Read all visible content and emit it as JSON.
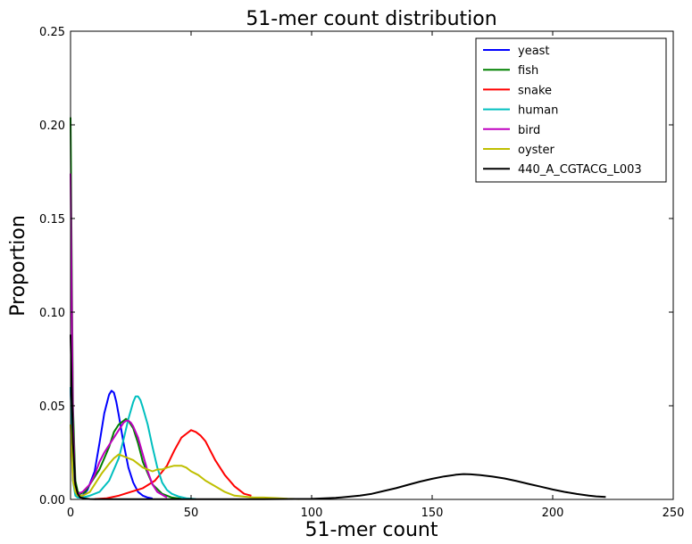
{
  "chart_data": {
    "type": "line",
    "title": "51-mer count distribution",
    "xlabel": "51-mer count",
    "ylabel": "Proportion",
    "xlim": [
      0,
      250
    ],
    "ylim": [
      0,
      0.25
    ],
    "xticks": [
      "0",
      "50",
      "100",
      "150",
      "200",
      "250"
    ],
    "yticks": [
      "0.00",
      "0.05",
      "0.10",
      "0.15",
      "0.20",
      "0.25"
    ],
    "grid": false,
    "legend_position": "top-right",
    "series": [
      {
        "name": "yeast",
        "color": "#0000ff",
        "x": [
          0,
          1,
          2,
          3,
          5,
          7,
          10,
          12,
          14,
          16,
          17,
          18,
          19,
          20,
          22,
          24,
          26,
          28,
          30,
          32,
          34
        ],
        "y": [
          0.06,
          0.02,
          0.004,
          0.002,
          0.002,
          0.005,
          0.015,
          0.03,
          0.046,
          0.056,
          0.058,
          0.057,
          0.052,
          0.045,
          0.03,
          0.017,
          0.009,
          0.004,
          0.002,
          0.001,
          0.0005
        ]
      },
      {
        "name": "fish",
        "color": "#008000",
        "x": [
          0,
          1,
          2,
          3,
          4,
          6,
          8,
          10,
          12,
          14,
          16,
          18,
          20,
          22,
          23,
          24,
          26,
          28,
          30,
          34,
          38,
          42,
          46
        ],
        "y": [
          0.204,
          0.05,
          0.01,
          0.004,
          0.003,
          0.004,
          0.008,
          0.012,
          0.016,
          0.022,
          0.028,
          0.036,
          0.04,
          0.042,
          0.043,
          0.042,
          0.038,
          0.03,
          0.02,
          0.008,
          0.003,
          0.001,
          0.0003
        ]
      },
      {
        "name": "snake",
        "color": "#ff0000",
        "x": [
          10,
          15,
          20,
          25,
          30,
          35,
          40,
          43,
          46,
          48,
          50,
          52,
          54,
          56,
          58,
          60,
          64,
          68,
          72,
          75
        ],
        "y": [
          0.0002,
          0.0006,
          0.002,
          0.004,
          0.006,
          0.01,
          0.018,
          0.026,
          0.033,
          0.035,
          0.037,
          0.036,
          0.034,
          0.031,
          0.026,
          0.021,
          0.013,
          0.007,
          0.003,
          0.002
        ]
      },
      {
        "name": "human",
        "color": "#00bfbf",
        "x": [
          0,
          1,
          2,
          3,
          5,
          8,
          12,
          16,
          20,
          22,
          24,
          26,
          27,
          28,
          29,
          30,
          32,
          34,
          36,
          38,
          40,
          42,
          45,
          48,
          52
        ],
        "y": [
          0.06,
          0.01,
          0.002,
          0.001,
          0.001,
          0.002,
          0.004,
          0.01,
          0.022,
          0.032,
          0.043,
          0.052,
          0.055,
          0.055,
          0.053,
          0.049,
          0.04,
          0.028,
          0.017,
          0.009,
          0.005,
          0.003,
          0.0015,
          0.0006,
          0.0002
        ]
      },
      {
        "name": "bird",
        "color": "#bf00bf",
        "x": [
          0,
          1,
          2,
          3,
          5,
          8,
          10,
          12,
          14,
          16,
          18,
          20,
          22,
          23,
          24,
          25,
          26,
          28,
          30,
          32,
          34,
          36,
          40
        ],
        "y": [
          0.174,
          0.04,
          0.006,
          0.003,
          0.004,
          0.008,
          0.013,
          0.02,
          0.025,
          0.029,
          0.033,
          0.037,
          0.041,
          0.042,
          0.042,
          0.041,
          0.039,
          0.033,
          0.024,
          0.015,
          0.008,
          0.004,
          0.001
        ]
      },
      {
        "name": "oyster",
        "color": "#bfbf00",
        "x": [
          0,
          1,
          2,
          3,
          5,
          8,
          10,
          13,
          16,
          18,
          20,
          22,
          24,
          26,
          28,
          30,
          32,
          34,
          36,
          38,
          40,
          43,
          46,
          48,
          50,
          53,
          56,
          60,
          64,
          68,
          72,
          76,
          80,
          85,
          90,
          95
        ],
        "y": [
          0.04,
          0.01,
          0.004,
          0.002,
          0.002,
          0.004,
          0.008,
          0.014,
          0.019,
          0.022,
          0.024,
          0.023,
          0.022,
          0.021,
          0.019,
          0.017,
          0.016,
          0.015,
          0.016,
          0.016,
          0.017,
          0.018,
          0.018,
          0.017,
          0.015,
          0.013,
          0.01,
          0.007,
          0.004,
          0.002,
          0.0015,
          0.001,
          0.001,
          0.0007,
          0.0004,
          0.0002
        ]
      },
      {
        "name": "440_A_CGTACG_L003",
        "color": "#000000",
        "x": [
          0,
          1,
          2,
          3,
          4,
          6,
          8,
          10,
          15,
          20,
          40,
          60,
          80,
          100,
          110,
          120,
          125,
          130,
          135,
          140,
          145,
          150,
          155,
          160,
          163,
          166,
          170,
          175,
          180,
          185,
          190,
          195,
          200,
          205,
          210,
          215,
          218,
          222
        ],
        "y": [
          0.088,
          0.03,
          0.008,
          0.003,
          0.001,
          0.0005,
          0.0002,
          0.0001,
          0.0001,
          0.0001,
          0.0001,
          0.0001,
          0.0001,
          0.0003,
          0.0008,
          0.002,
          0.003,
          0.0045,
          0.006,
          0.0078,
          0.0095,
          0.011,
          0.0123,
          0.0132,
          0.0135,
          0.0134,
          0.013,
          0.0122,
          0.0112,
          0.0098,
          0.0083,
          0.0068,
          0.0053,
          0.004,
          0.0029,
          0.002,
          0.0016,
          0.0013
        ]
      }
    ]
  }
}
